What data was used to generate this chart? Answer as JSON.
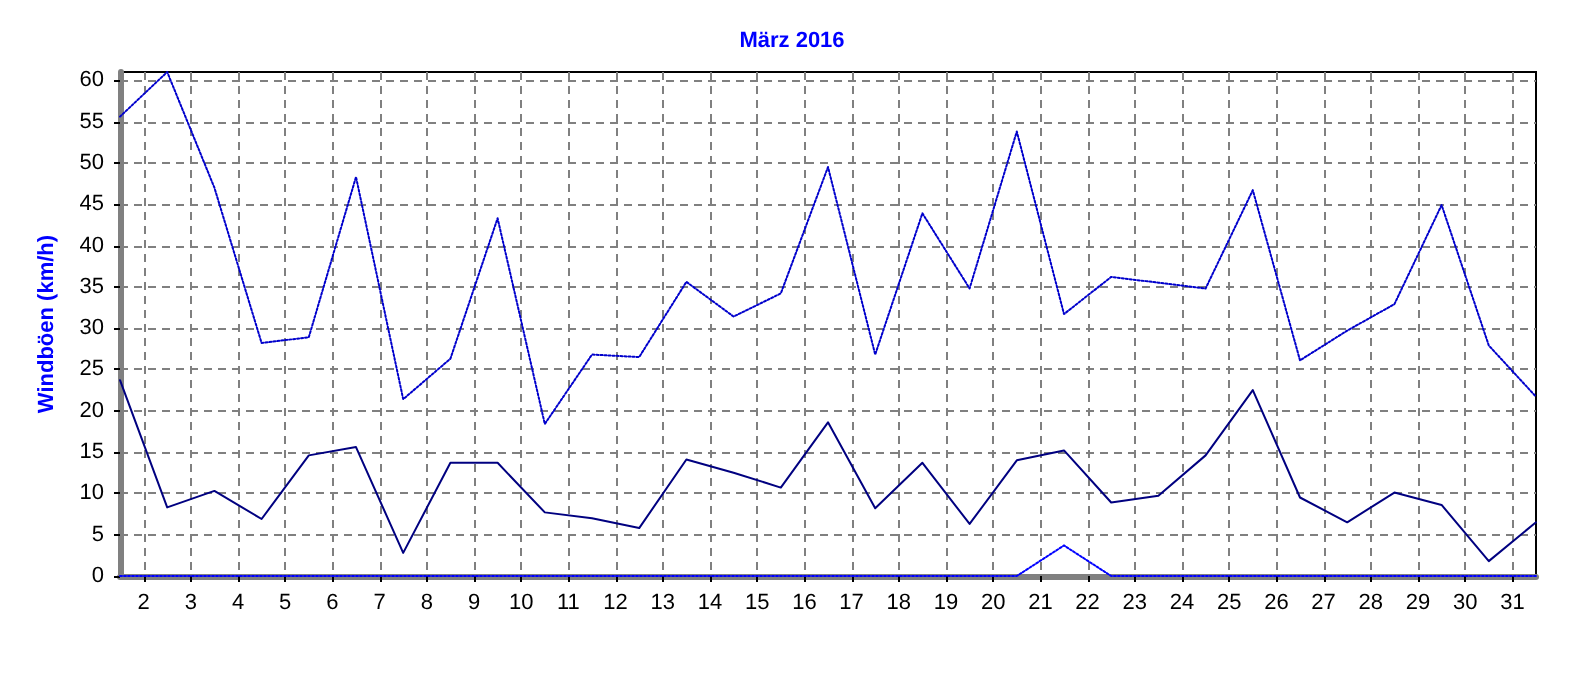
{
  "chart_data": {
    "type": "line",
    "title": "März 2016",
    "ylabel": "Windböen (km/h)",
    "x": [
      1.5,
      2.5,
      3.5,
      4.5,
      5.5,
      6.5,
      7.5,
      8.5,
      9.5,
      10.5,
      11.5,
      12.5,
      13.5,
      14.5,
      15.5,
      16.5,
      17.5,
      18.5,
      19.5,
      20.5,
      21.5,
      22.5,
      23.5,
      24.5,
      25.5,
      26.5,
      27.5,
      28.5,
      29.5,
      30.5,
      31.5
    ],
    "series": [
      {
        "color": "#0000cc",
        "line_style": "dotted",
        "values": [
          55.6,
          61,
          47,
          28.2,
          28.9,
          48.3,
          21.4,
          26.3,
          43.3,
          18.4,
          26.8,
          26.5,
          35.6,
          31.4,
          34.2,
          49.5,
          26.8,
          43.9,
          34.8,
          53.8,
          31.7,
          36.2,
          35.5,
          34.8,
          46.7,
          26.1,
          29.7,
          32.9,
          44.9,
          27.9,
          21.7
        ]
      },
      {
        "color": "#000080",
        "line_style": "solid",
        "values": [
          23.7,
          8.3,
          10.3,
          6.9,
          14.6,
          15.6,
          2.8,
          13.7,
          13.7,
          7.7,
          7,
          5.8,
          14.1,
          12.5,
          10.7,
          18.6,
          8.2,
          13.7,
          6.3,
          14,
          15.2,
          8.9,
          9.7,
          14.6,
          22.5,
          9.5,
          6.5,
          10.1,
          8.6,
          1.8,
          6.5
        ]
      },
      {
        "color": "#0000ff",
        "line_style": "dotted",
        "values": [
          0,
          0,
          0,
          0,
          0,
          0,
          0,
          0,
          0,
          0,
          0,
          0,
          0,
          0,
          0,
          0,
          0,
          0,
          0,
          0,
          3.7,
          0,
          0,
          0,
          0,
          0,
          0,
          0,
          0,
          0,
          0
        ]
      }
    ],
    "xlim": [
      1.5,
      31.5
    ],
    "xticks": [
      2,
      3,
      4,
      5,
      6,
      7,
      8,
      9,
      10,
      11,
      12,
      13,
      14,
      15,
      16,
      17,
      18,
      19,
      20,
      21,
      22,
      23,
      24,
      25,
      26,
      27,
      28,
      29,
      30,
      31
    ],
    "ylim": [
      0,
      61
    ],
    "yticks": [
      0,
      5,
      10,
      15,
      20,
      25,
      30,
      35,
      40,
      45,
      50,
      55,
      60
    ],
    "grid": true,
    "marker": "none"
  }
}
